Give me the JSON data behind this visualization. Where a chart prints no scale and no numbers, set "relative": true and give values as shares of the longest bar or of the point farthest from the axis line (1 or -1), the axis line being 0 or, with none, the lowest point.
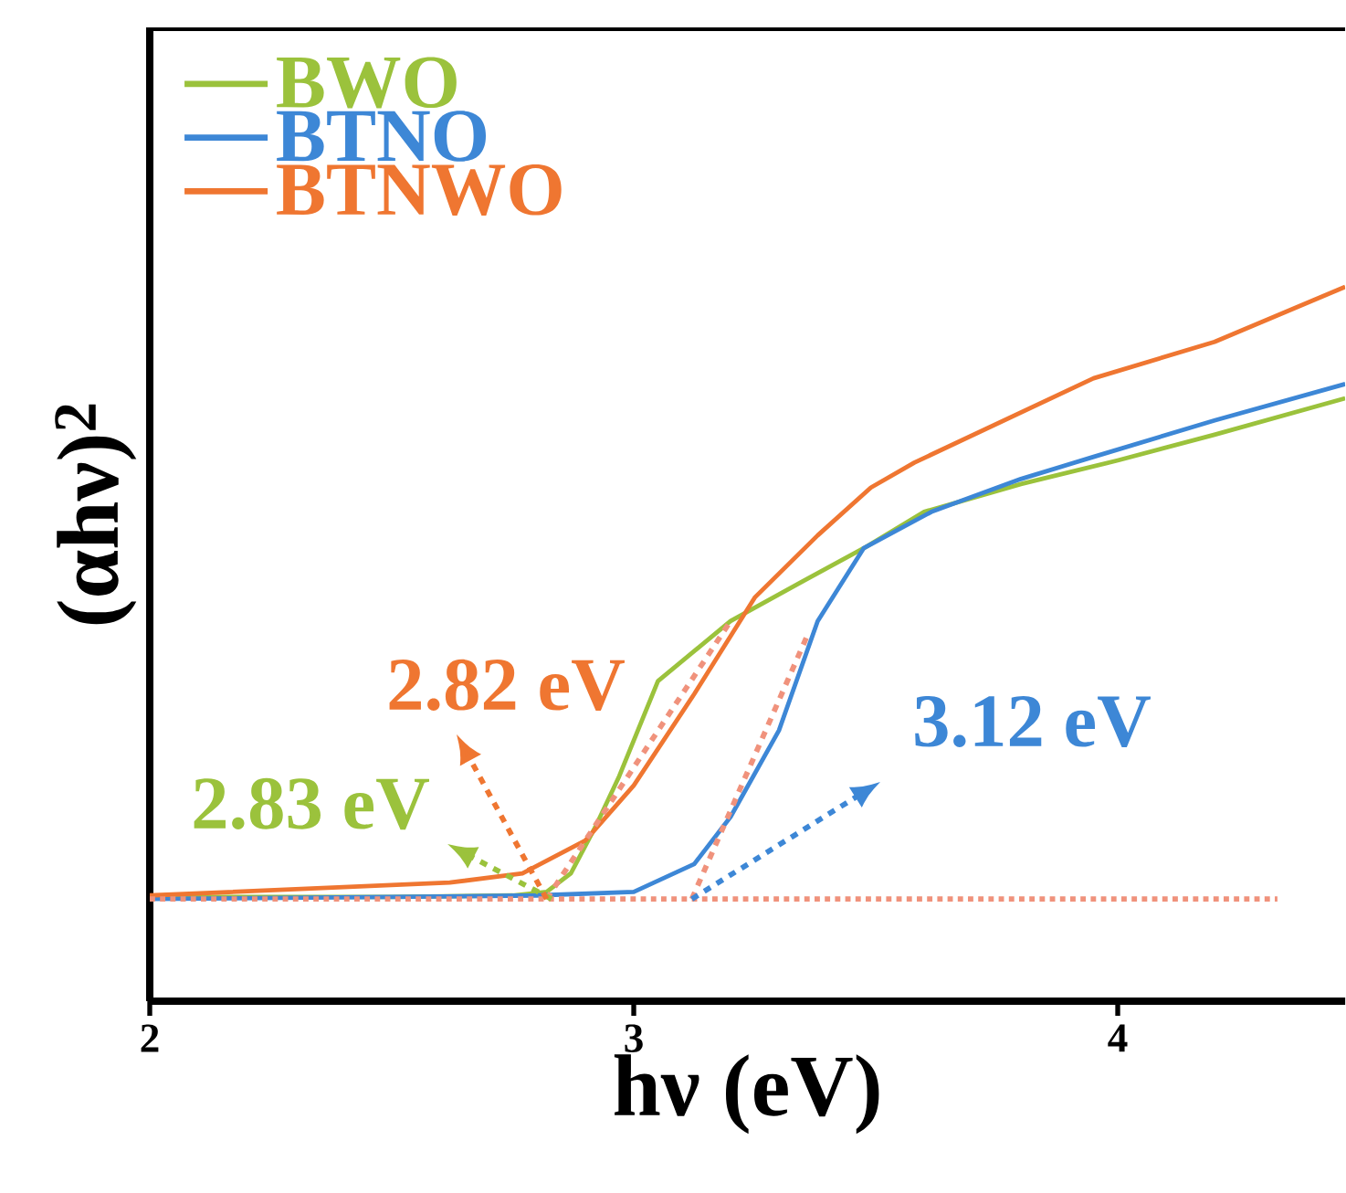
{
  "chart_data": {
    "type": "line",
    "xlabel": "hν (eV)",
    "ylabel": "(αhν)$^{2}$",
    "relative": true,
    "xlim": [
      2,
      4.47
    ],
    "xticks": [
      2,
      3,
      4
    ],
    "legend": "top left",
    "grid": false,
    "marker": "none",
    "series": [
      {
        "name": "BWO",
        "color": "#9bc23c",
        "line_style": "solid",
        "x": [
          2,
          2.5,
          2.75,
          2.82,
          2.87,
          2.92,
          2.97,
          3.05,
          3.2,
          3.35,
          3.475,
          3.6,
          3.8,
          4.0,
          4.2,
          4.47
        ],
        "values": [
          0.146,
          0.146,
          0.148,
          0.153,
          0.179,
          0.243,
          0.315,
          0.448,
          0.532,
          0.588,
          0.634,
          0.685,
          0.724,
          0.757,
          0.793,
          0.844
        ]
      },
      {
        "name": "BTNO",
        "color": "#3d87d6",
        "line_style": "solid",
        "x": [
          2,
          2.5,
          2.8,
          3.0,
          3.125,
          3.2,
          3.3,
          3.38,
          3.475,
          3.615,
          3.8,
          3.95,
          4.2,
          4.47
        ],
        "values": [
          0.143,
          0.146,
          0.148,
          0.153,
          0.192,
          0.258,
          0.379,
          0.532,
          0.634,
          0.685,
          0.731,
          0.762,
          0.813,
          0.864
        ]
      },
      {
        "name": "BTNWO",
        "color": "#ef7631",
        "line_style": "solid",
        "x": [
          2,
          2.62,
          2.77,
          2.9,
          3.0,
          3.125,
          3.25,
          3.38,
          3.49,
          3.58,
          3.95,
          4.2,
          4.47
        ],
        "values": [
          0.148,
          0.166,
          0.179,
          0.225,
          0.302,
          0.43,
          0.565,
          0.652,
          0.719,
          0.754,
          0.872,
          0.923,
          1.0
        ]
      },
      {
        "type": "line",
        "color": "#f0927c",
        "line_style": "dashed",
        "x": [
          2.82,
          3.2
        ],
        "values": [
          0.143,
          0.532
        ]
      },
      {
        "type": "line",
        "color": "#f0927c",
        "line_style": "dashed",
        "x": [
          3.12,
          3.36
        ],
        "values": [
          0.143,
          0.514
        ]
      },
      {
        "type": "line",
        "color": "#f0927c",
        "line_style": "dotted",
        "x": [
          2,
          4.33
        ],
        "values": [
          0.143,
          0.143
        ]
      }
    ],
    "annotations": [
      {
        "text": "2.83 eV",
        "x": 2.83,
        "y": 0.143
      },
      {
        "text": "2.82 eV",
        "x": 2.82,
        "y": 0.143
      },
      {
        "text": "3.12 eV",
        "x": 3.12,
        "y": 0.143
      }
    ]
  }
}
